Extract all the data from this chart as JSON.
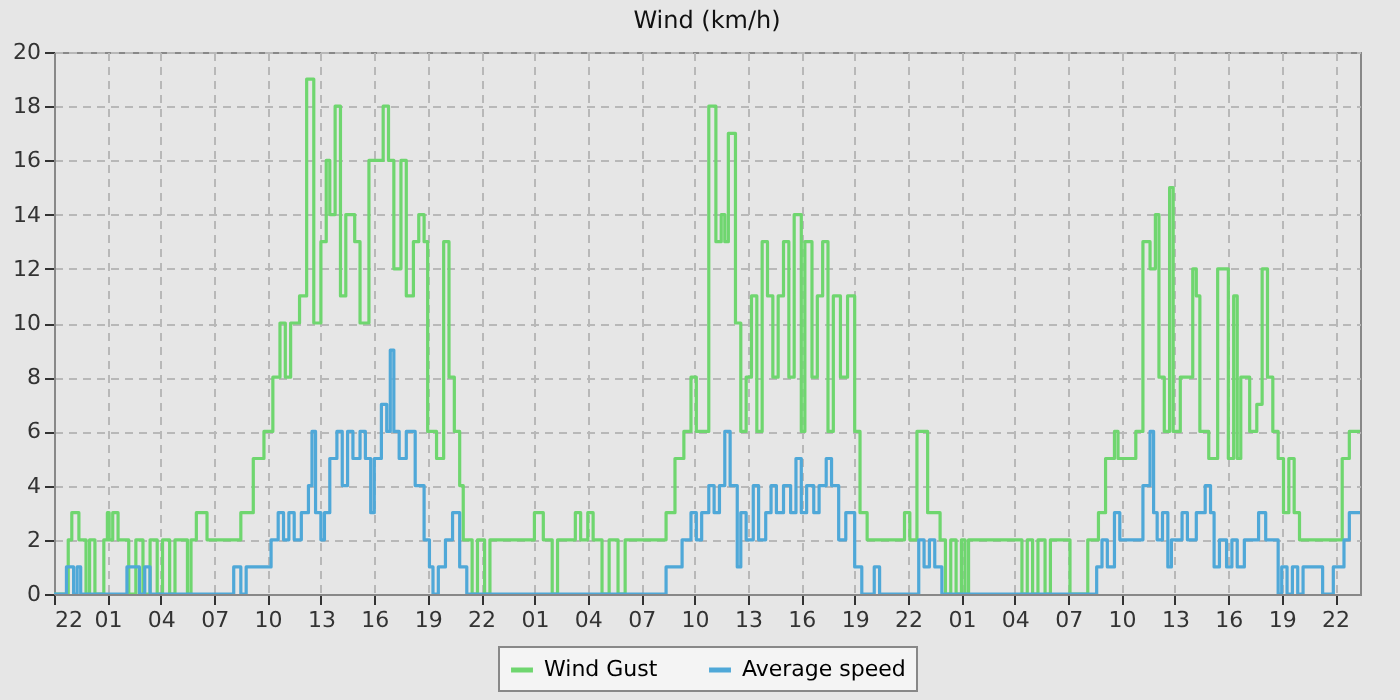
{
  "chart_data": {
    "type": "step",
    "title": "Wind (km/h)",
    "xlim": [
      "--01-01T22:00",
      "--01-04T23:24"
    ],
    "ylim": [
      0,
      20
    ],
    "xticks": [
      {
        "value": "--01-01T22:00",
        "label": "22"
      },
      {
        "value": "--01-02T01:00",
        "label": "01"
      },
      {
        "value": "--01-02T04:00",
        "label": "04"
      },
      {
        "value": "--01-02T07:00",
        "label": "07"
      },
      {
        "value": "--01-02T10:00",
        "label": "10"
      },
      {
        "value": "--01-02T13:00",
        "label": "13"
      },
      {
        "value": "--01-02T16:00",
        "label": "16"
      },
      {
        "value": "--01-02T19:00",
        "label": "19"
      },
      {
        "value": "--01-02T22:00",
        "label": "22"
      },
      {
        "value": "--01-03T01:00",
        "label": "01"
      },
      {
        "value": "--01-03T04:00",
        "label": "04"
      },
      {
        "value": "--01-03T07:00",
        "label": "07"
      },
      {
        "value": "--01-03T10:00",
        "label": "10"
      },
      {
        "value": "--01-03T13:00",
        "label": "13"
      },
      {
        "value": "--01-03T16:00",
        "label": "16"
      },
      {
        "value": "--01-03T19:00",
        "label": "19"
      },
      {
        "value": "--01-03T22:00",
        "label": "22"
      },
      {
        "value": "--01-04T01:00",
        "label": "01"
      },
      {
        "value": "--01-04T04:00",
        "label": "04"
      },
      {
        "value": "--01-04T07:00",
        "label": "07"
      },
      {
        "value": "--01-04T10:00",
        "label": "10"
      },
      {
        "value": "--01-04T13:00",
        "label": "13"
      },
      {
        "value": "--01-04T16:00",
        "label": "16"
      },
      {
        "value": "--01-04T19:00",
        "label": "19"
      },
      {
        "value": "--01-04T22:00",
        "label": "22"
      }
    ],
    "yticks": [
      0,
      2,
      4,
      6,
      8,
      10,
      12,
      14,
      16,
      18,
      20
    ],
    "grid": true,
    "legend": "bottom",
    "series": [
      {
        "name": "Wind Gust",
        "color": "#6fd66f",
        "x": [
          "--01-01T22:00",
          "--01-01T22:48",
          "--01-01T23:00",
          "--01-01T23:24",
          "--01-01T23:48",
          "--01-02T00:00",
          "--01-02T00:18",
          "--01-02T00:48",
          "--01-02T01:00",
          "--01-02T01:06",
          "--01-02T01:18",
          "--01-02T01:36",
          "--01-02T02:12",
          "--01-02T02:36",
          "--01-02T03:00",
          "--01-02T03:24",
          "--01-02T03:48",
          "--01-02T04:06",
          "--01-02T04:30",
          "--01-02T04:48",
          "--01-02T05:30",
          "--01-02T05:42",
          "--01-02T06:00",
          "--01-02T06:36",
          "--01-02T08:30",
          "--01-02T09:12",
          "--01-02T09:48",
          "--01-02T10:18",
          "--01-02T10:42",
          "--01-02T11:00",
          "--01-02T11:18",
          "--01-02T11:48",
          "--01-02T12:12",
          "--01-02T12:36",
          "--01-02T13:00",
          "--01-02T13:18",
          "--01-02T13:30",
          "--01-02T13:48",
          "--01-02T14:06",
          "--01-02T14:24",
          "--01-02T14:54",
          "--01-02T15:12",
          "--01-02T15:42",
          "--01-02T16:30",
          "--01-02T16:48",
          "--01-02T17:06",
          "--01-02T17:30",
          "--01-02T17:48",
          "--01-02T18:12",
          "--01-02T18:30",
          "--01-02T18:48",
          "--01-02T19:00",
          "--01-02T19:30",
          "--01-02T19:54",
          "--01-02T20:12",
          "--01-02T20:30",
          "--01-02T20:48",
          "--01-02T21:00",
          "--01-02T21:30",
          "--01-02T21:48",
          "--01-02T22:12",
          "--01-02T22:30",
          "--01-03T01:00",
          "--01-03T01:30",
          "--01-03T02:00",
          "--01-03T02:18",
          "--01-03T03:18",
          "--01-03T03:36",
          "--01-03T04:00",
          "--01-03T04:18",
          "--01-03T04:48",
          "--01-03T05:12",
          "--01-03T05:42",
          "--01-03T06:06",
          "--01-03T08:24",
          "--01-03T08:54",
          "--01-03T09:24",
          "--01-03T09:48",
          "--01-03T10:06",
          "--01-03T10:48",
          "--01-03T11:12",
          "--01-03T11:30",
          "--01-03T11:42",
          "--01-03T11:54",
          "--01-03T12:18",
          "--01-03T12:36",
          "--01-03T12:54",
          "--01-03T13:12",
          "--01-03T13:30",
          "--01-03T13:48",
          "--01-03T14:06",
          "--01-03T14:24",
          "--01-03T14:42",
          "--01-03T15:00",
          "--01-03T15:18",
          "--01-03T15:36",
          "--01-03T16:00",
          "--01-03T16:12",
          "--01-03T16:36",
          "--01-03T16:54",
          "--01-03T17:12",
          "--01-03T17:30",
          "--01-03T17:48",
          "--01-03T18:12",
          "--01-03T18:36",
          "--01-03T19:00",
          "--01-03T19:18",
          "--01-03T19:42",
          "--01-03T21:48",
          "--01-03T22:06",
          "--01-03T22:30",
          "--01-03T23:06",
          "--01-03T23:48",
          "--01-04T00:06",
          "--01-04T00:24",
          "--01-04T00:42",
          "--01-04T01:00",
          "--01-04T01:12",
          "--01-04T01:24",
          "--01-04T04:24",
          "--01-04T04:42",
          "--01-04T05:00",
          "--01-04T05:18",
          "--01-04T05:42",
          "--01-04T06:00",
          "--01-04T07:06",
          "--01-04T08:06",
          "--01-04T08:42",
          "--01-04T09:06",
          "--01-04T09:36",
          "--01-04T09:48",
          "--01-04T10:48",
          "--01-04T11:12",
          "--01-04T11:36",
          "--01-04T11:54",
          "--01-04T12:06",
          "--01-04T12:24",
          "--01-04T12:42",
          "--01-04T12:54",
          "--01-04T13:18",
          "--01-04T14:00",
          "--01-04T14:12",
          "--01-04T14:24",
          "--01-04T14:54",
          "--01-04T15:24",
          "--01-04T16:00",
          "--01-04T16:18",
          "--01-04T16:30",
          "--01-04T16:42",
          "--01-04T17:12",
          "--01-04T17:36",
          "--01-04T17:54",
          "--01-04T18:12",
          "--01-04T18:30",
          "--01-04T18:48",
          "--01-04T19:06",
          "--01-04T19:24",
          "--01-04T19:42",
          "--01-04T20:00",
          "--01-04T22:24",
          "--01-04T22:48",
          "--01-04T23:24"
        ],
        "values": [
          0,
          2,
          3,
          2,
          0,
          2,
          0,
          2,
          3,
          2,
          3,
          2,
          0,
          2,
          0,
          2,
          0,
          2,
          0,
          2,
          0,
          2,
          3,
          2,
          3,
          5,
          6,
          8,
          10,
          8,
          10,
          11,
          19,
          10,
          13,
          16,
          14,
          18,
          11,
          14,
          13,
          10,
          16,
          18,
          16,
          12,
          16,
          11,
          13,
          14,
          13,
          6,
          5,
          13,
          8,
          6,
          4,
          2,
          0,
          2,
          0,
          2,
          3,
          2,
          0,
          2,
          3,
          2,
          3,
          2,
          0,
          2,
          0,
          2,
          3,
          5,
          6,
          8,
          6,
          18,
          13,
          14,
          13,
          17,
          10,
          6,
          8,
          11,
          6,
          13,
          11,
          8,
          11,
          13,
          8,
          14,
          6,
          13,
          8,
          11,
          13,
          6,
          11,
          8,
          11,
          6,
          3,
          2,
          3,
          2,
          6,
          3,
          2,
          0,
          2,
          0,
          2,
          0,
          2,
          0,
          2,
          0,
          2,
          0,
          2,
          0,
          2,
          3,
          5,
          6,
          5,
          6,
          13,
          12,
          14,
          8,
          6,
          15,
          6,
          8,
          12,
          11,
          6,
          5,
          12,
          5,
          11,
          5,
          8,
          6,
          7,
          12,
          8,
          6,
          5,
          3,
          5,
          3,
          2,
          5,
          6,
          6
        ]
      },
      {
        "name": "Average speed",
        "color": "#4fa8d8",
        "x": [
          "--01-01T22:00",
          "--01-01T22:42",
          "--01-01T23:06",
          "--01-01T23:18",
          "--01-01T23:30",
          "--01-02T02:06",
          "--01-02T02:48",
          "--01-02T03:06",
          "--01-02T03:24",
          "--01-02T08:06",
          "--01-02T08:30",
          "--01-02T08:48",
          "--01-02T10:12",
          "--01-02T10:36",
          "--01-02T10:54",
          "--01-02T11:12",
          "--01-02T11:30",
          "--01-02T11:54",
          "--01-02T12:18",
          "--01-02T12:30",
          "--01-02T12:42",
          "--01-02T13:00",
          "--01-02T13:12",
          "--01-02T13:30",
          "--01-02T13:54",
          "--01-02T14:12",
          "--01-02T14:30",
          "--01-02T14:48",
          "--01-02T15:12",
          "--01-02T15:30",
          "--01-02T15:48",
          "--01-02T16:00",
          "--01-02T16:24",
          "--01-02T16:42",
          "--01-02T16:54",
          "--01-02T17:06",
          "--01-02T17:24",
          "--01-02T17:48",
          "--01-02T18:18",
          "--01-02T18:48",
          "--01-02T19:06",
          "--01-02T19:18",
          "--01-02T19:36",
          "--01-02T20:00",
          "--01-02T20:24",
          "--01-02T20:48",
          "--01-02T21:12",
          "--01-03T08:24",
          "--01-03T09:18",
          "--01-03T09:48",
          "--01-03T10:06",
          "--01-03T10:24",
          "--01-03T10:48",
          "--01-03T11:06",
          "--01-03T11:24",
          "--01-03T11:42",
          "--01-03T12:00",
          "--01-03T12:24",
          "--01-03T12:36",
          "--01-03T12:54",
          "--01-03T13:18",
          "--01-03T13:36",
          "--01-03T14:00",
          "--01-03T14:18",
          "--01-03T14:36",
          "--01-03T15:00",
          "--01-03T15:24",
          "--01-03T15:42",
          "--01-03T16:00",
          "--01-03T16:18",
          "--01-03T16:42",
          "--01-03T17:00",
          "--01-03T17:24",
          "--01-03T17:42",
          "--01-03T18:06",
          "--01-03T18:30",
          "--01-03T19:00",
          "--01-03T19:24",
          "--01-03T20:06",
          "--01-03T20:24",
          "--01-03T22:36",
          "--01-03T22:54",
          "--01-03T23:12",
          "--01-03T23:30",
          "--01-03T23:54",
          "--01-04T08:36",
          "--01-04T08:54",
          "--01-04T09:12",
          "--01-04T09:36",
          "--01-04T09:54",
          "--01-04T11:12",
          "--01-04T11:36",
          "--01-04T11:48",
          "--01-04T12:00",
          "--01-04T12:18",
          "--01-04T12:36",
          "--01-04T12:48",
          "--01-04T13:24",
          "--01-04T13:42",
          "--01-04T14:12",
          "--01-04T14:42",
          "--01-04T15:00",
          "--01-04T15:12",
          "--01-04T15:30",
          "--01-04T15:54",
          "--01-04T16:12",
          "--01-04T16:30",
          "--01-04T16:54",
          "--01-04T17:42",
          "--01-04T18:06",
          "--01-04T18:48",
          "--01-04T19:00",
          "--01-04T19:18",
          "--01-04T19:36",
          "--01-04T19:54",
          "--01-04T20:12",
          "--01-04T21:18",
          "--01-04T21:54",
          "--01-04T22:30",
          "--01-04T22:48",
          "--01-04T23:24"
        ],
        "values": [
          0,
          1,
          0,
          1,
          0,
          1,
          0,
          1,
          0,
          1,
          0,
          1,
          2,
          3,
          2,
          3,
          2,
          3,
          4,
          6,
          3,
          2,
          3,
          5,
          6,
          4,
          6,
          5,
          6,
          5,
          3,
          5,
          7,
          6,
          9,
          6,
          5,
          6,
          4,
          2,
          1,
          0,
          1,
          2,
          3,
          1,
          0,
          1,
          2,
          3,
          2,
          3,
          4,
          3,
          4,
          6,
          4,
          1,
          3,
          2,
          4,
          2,
          3,
          4,
          3,
          4,
          3,
          5,
          3,
          4,
          3,
          4,
          5,
          4,
          2,
          3,
          1,
          0,
          1,
          0,
          2,
          1,
          2,
          1,
          0,
          1,
          2,
          1,
          3,
          2,
          4,
          6,
          3,
          2,
          3,
          1,
          2,
          3,
          2,
          3,
          4,
          3,
          1,
          2,
          1,
          2,
          1,
          2,
          3,
          2,
          0,
          1,
          0,
          1,
          0,
          1,
          0,
          1,
          2,
          3,
          3
        ]
      }
    ]
  }
}
